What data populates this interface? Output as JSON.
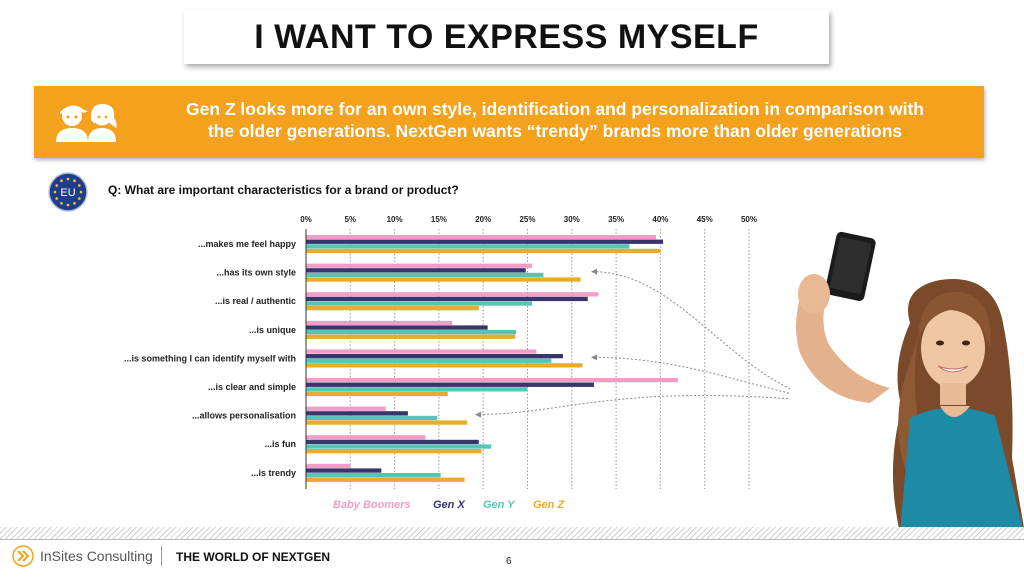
{
  "slide": {
    "title": "I WANT TO EXPRESS MYSELF",
    "banner_line1": "Gen Z looks more for an own style, identification and personalization in comparison with",
    "banner_line2": "the older generations. NextGen wants “trendy” brands more than older generations",
    "eu_label": "EU",
    "question": "Q: What are important characteristics for a brand or product?",
    "footer_brand": "InSites Consulting",
    "footer_title": "THE WORLD OF NEXTGEN",
    "page_number": "6"
  },
  "colors": {
    "accent": "#f4a11d",
    "baby_boomers": "#f29dc8",
    "gen_x": "#37356b",
    "gen_y": "#55c5b8",
    "gen_z": "#e9ab2c"
  },
  "chart_data": {
    "type": "bar",
    "orientation": "horizontal",
    "title": "",
    "xlabel": "",
    "ylabel": "",
    "xlim": [
      0,
      50
    ],
    "ticks": [
      "0%",
      "5%",
      "10%",
      "15%",
      "20%",
      "25%",
      "30%",
      "35%",
      "40%",
      "45%",
      "50%"
    ],
    "categories": [
      "...makes me feel happy",
      "...has its own style",
      "...is real / authentic",
      "...is unique",
      "...is something I can identify myself with",
      "...is clear and simple",
      "...allows personalisation",
      "...is fun",
      "...is trendy"
    ],
    "series": [
      {
        "name": "Baby Boomers",
        "color": "#f29dc8",
        "values": [
          39.5,
          25.5,
          33,
          16.5,
          26,
          42,
          9,
          13.5,
          5
        ]
      },
      {
        "name": "Gen X",
        "color": "#37356b",
        "values": [
          40.3,
          24.8,
          31.8,
          20.5,
          29,
          32.5,
          11.5,
          19.5,
          8.5
        ]
      },
      {
        "name": "Gen Y",
        "color": "#55c5b8",
        "values": [
          36.5,
          26.8,
          25.5,
          23.7,
          27.7,
          25,
          14.8,
          20.9,
          15.2
        ]
      },
      {
        "name": "Gen Z",
        "color": "#e9ab2c",
        "values": [
          40,
          31,
          19.5,
          23.6,
          31.2,
          16,
          18.2,
          19.8,
          17.9
        ]
      }
    ],
    "highlighted_categories": [
      1,
      4,
      6
    ],
    "legend_position": "bottom"
  }
}
